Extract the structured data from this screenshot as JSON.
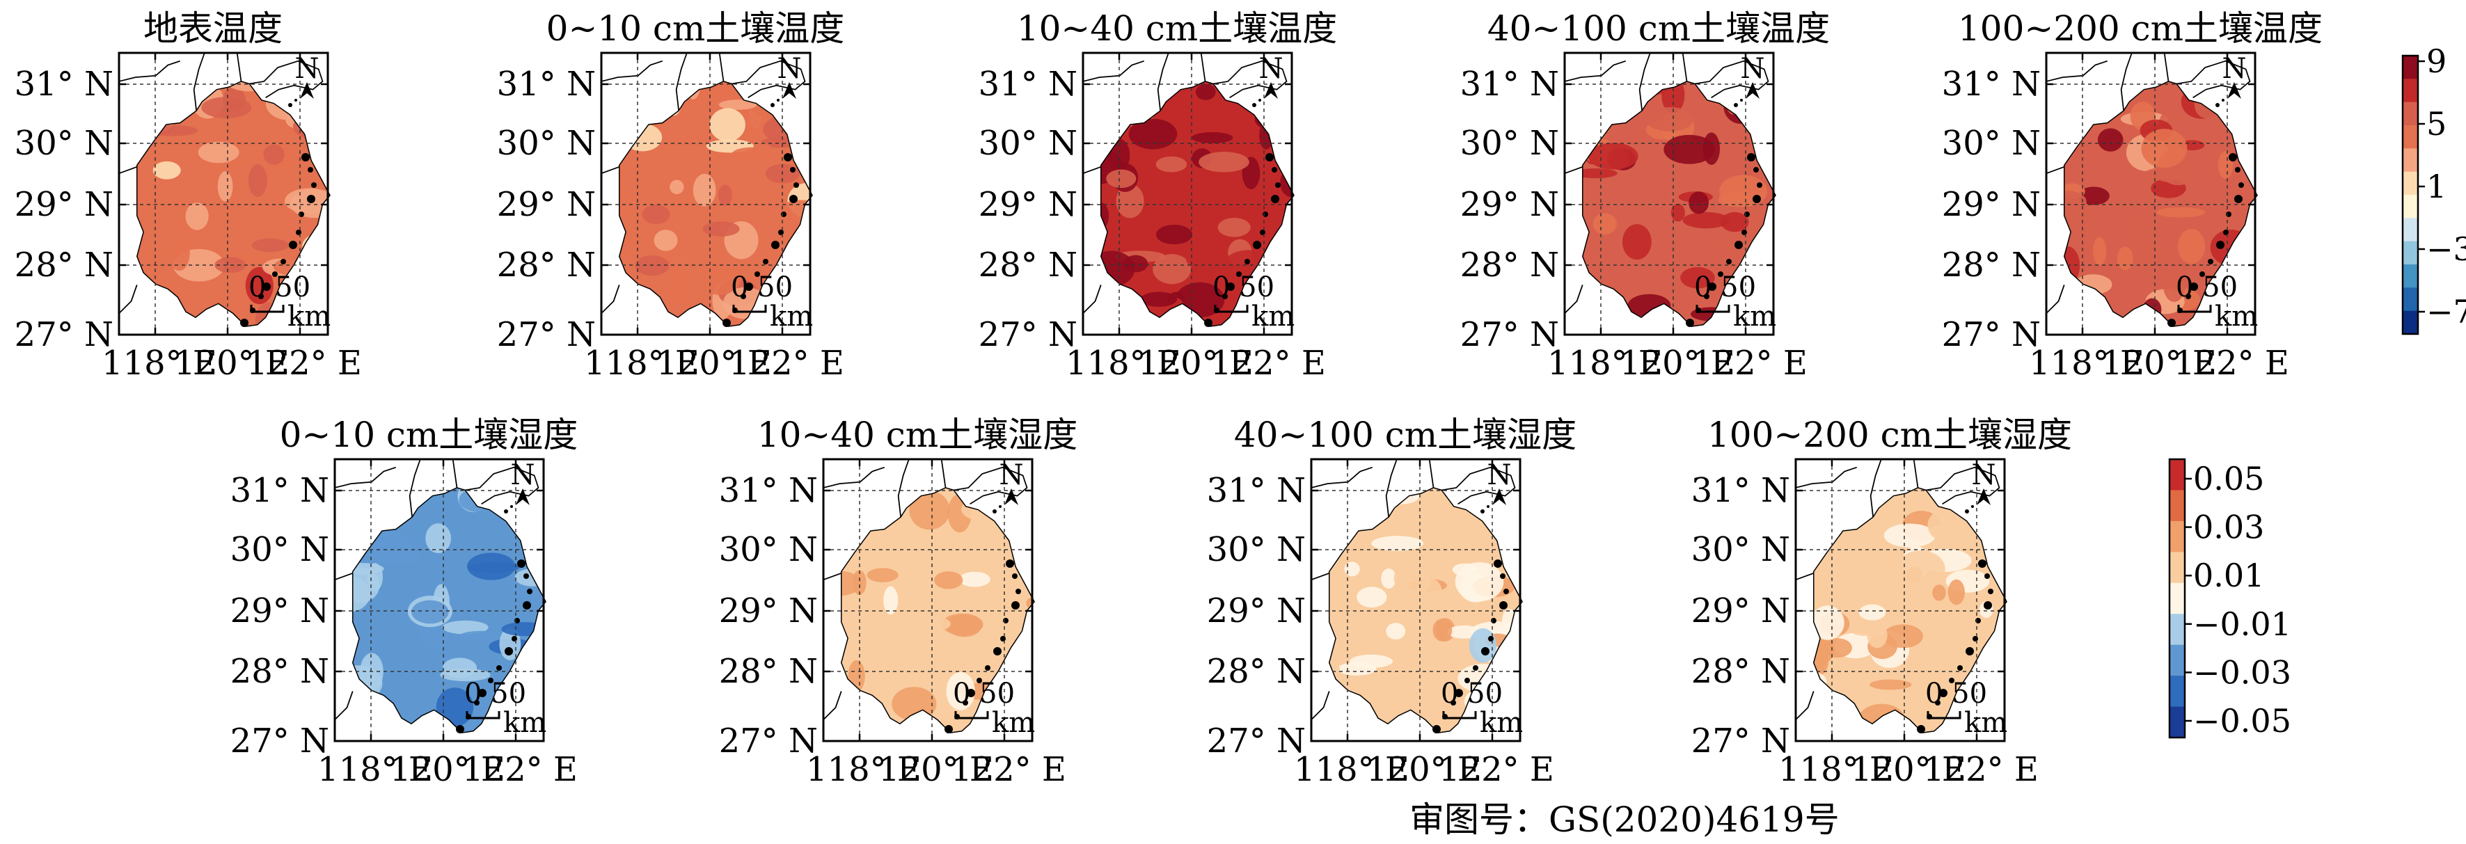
{
  "temperature": {
    "panels": [
      {
        "title": "地表温度",
        "mean_level": 4
      },
      {
        "title": "0~10 cm土壤温度",
        "mean_level": 3.5
      },
      {
        "title": "10~40 cm土壤温度",
        "mean_level": 8
      },
      {
        "title": "40~100 cm土壤温度",
        "mean_level": 6.5
      },
      {
        "title": "100~200 cm土壤温度",
        "mean_level": 5.5
      }
    ],
    "colorbar": {
      "labels": [
        "9",
        "5",
        "1",
        "−3",
        "−7"
      ],
      "colors": [
        "#0b2e82",
        "#2166ac",
        "#4393c3",
        "#92c5de",
        "#d1e5f0",
        "#fff5d8",
        "#fddbb0",
        "#f4a582",
        "#e4714f",
        "#d6604d",
        "#c22a2a",
        "#8f0b1e"
      ]
    }
  },
  "moisture": {
    "panels": [
      {
        "title": "0~10 cm土壤湿度",
        "mean_level": -0.025
      },
      {
        "title": "10~40 cm土壤湿度",
        "mean_level": 0.012
      },
      {
        "title": "40~100 cm土壤湿度",
        "mean_level": 0.01
      },
      {
        "title": "100~200 cm土壤湿度",
        "mean_level": 0.015
      }
    ],
    "colorbar": {
      "labels": [
        "0.05",
        "0.03",
        "0.01",
        "−0.01",
        "−0.03",
        "−0.05"
      ],
      "colors": [
        "#1a3d97",
        "#2f6cbd",
        "#5f98d1",
        "#a9cde8",
        "#fff5e6",
        "#f9cda0",
        "#f0a16a",
        "#e26a42",
        "#c62a2a"
      ]
    }
  },
  "axes": {
    "lat_labels": [
      "31° N",
      "30° N",
      "29° N",
      "28° N",
      "27° N"
    ],
    "lon_labels": [
      "118° E",
      "120° E",
      "122° E"
    ]
  },
  "north_label": "N",
  "scale_bar": {
    "ticks": "0 50",
    "unit": "km"
  },
  "credit": "审图号：GS(2020)4619号"
}
